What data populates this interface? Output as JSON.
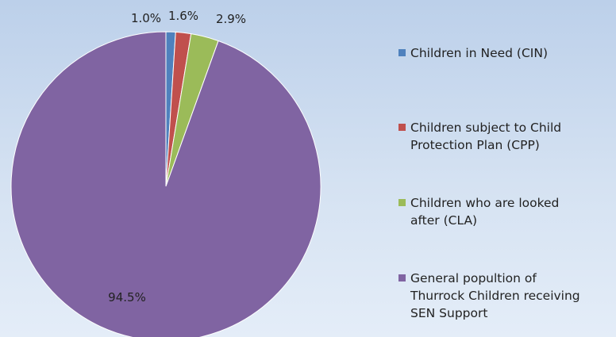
{
  "chart_data": {
    "type": "pie",
    "categories": [
      "Children in Need (CIN)",
      "Children subject to Child Protection Plan (CPP)",
      "Children who are looked after (CLA)",
      "General popultion of Thurrock Children receiving SEN Support"
    ],
    "values": [
      1.0,
      1.6,
      2.9,
      94.5
    ],
    "data_labels": [
      "1.0%",
      "1.6%",
      "2.9%",
      "94.5%"
    ],
    "colors": [
      "#4f81bd",
      "#c0504d",
      "#9bbb59",
      "#8064a2"
    ],
    "legend_position": "right"
  },
  "legend": {
    "items": [
      {
        "line1": "Children in Need (CIN)",
        "line2": ""
      },
      {
        "line1": "Children subject to Child",
        "line2": "Protection Plan (CPP)"
      },
      {
        "line1": "Children who are looked",
        "line2": "after (CLA)"
      },
      {
        "line1": "General popultion of",
        "line2": "Thurrock Children receiving",
        "line3": "SEN Support"
      }
    ]
  }
}
